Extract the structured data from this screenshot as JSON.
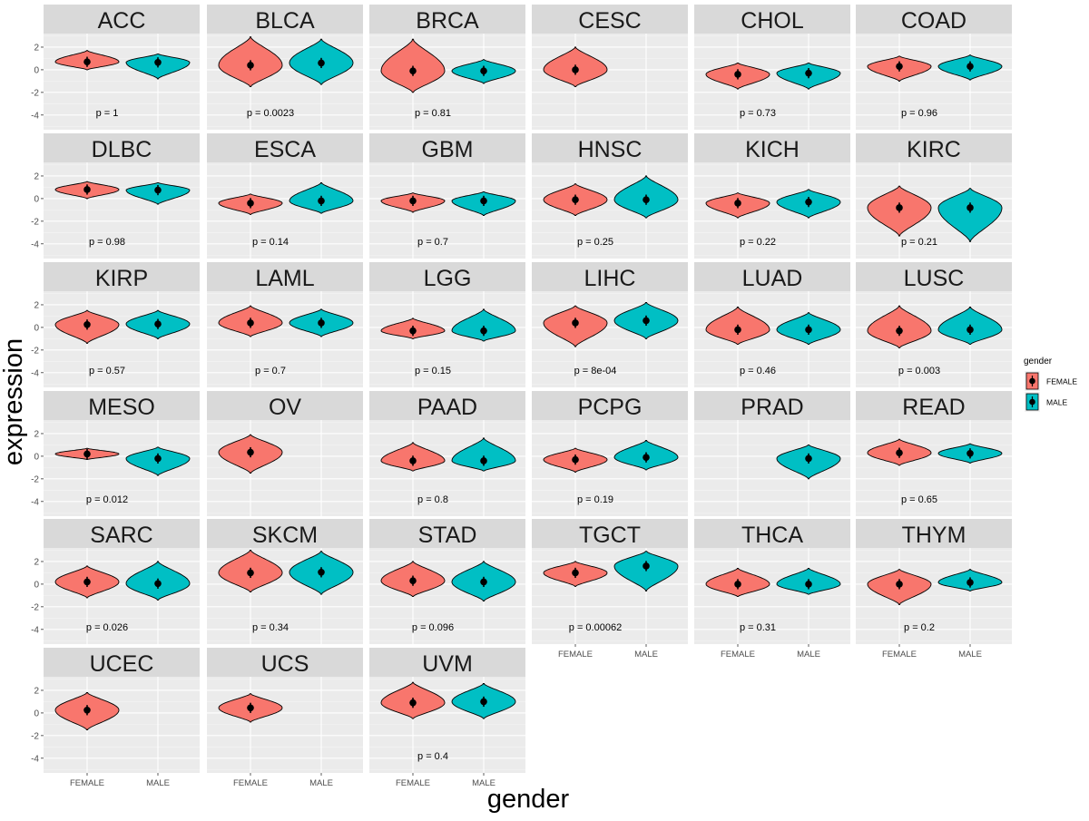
{
  "chart_data": {
    "type": "violin",
    "xlabel": "gender",
    "ylabel": "expression",
    "y_ticks": [
      -4,
      -2,
      0,
      2
    ],
    "ylim": [
      -5.3,
      3.2
    ],
    "x_categories": [
      "FEMALE",
      "MALE"
    ],
    "legend": {
      "title": "gender",
      "placement": "right",
      "items": [
        {
          "label": "FEMALE",
          "color": "#F8766D"
        },
        {
          "label": "MALE",
          "color": "#00BFC4"
        }
      ]
    },
    "panels": [
      {
        "name": "ACC",
        "p": "p = 1",
        "female": {
          "center": 0.7,
          "min": 0.0,
          "max": 1.7
        },
        "male": {
          "center": 0.65,
          "min": -0.8,
          "max": 1.4
        }
      },
      {
        "name": "BLCA",
        "p": "p = 0.0023",
        "female": {
          "center": 0.4,
          "min": -1.5,
          "max": 2.9
        },
        "male": {
          "center": 0.6,
          "min": -1.3,
          "max": 2.7
        }
      },
      {
        "name": "BRCA",
        "p": "p = 0.81",
        "female": {
          "center": -0.1,
          "min": -2.0,
          "max": 2.7
        },
        "male": {
          "center": -0.1,
          "min": -1.2,
          "max": 0.9
        }
      },
      {
        "name": "CESC",
        "p": "",
        "female": {
          "center": 0.0,
          "min": -1.5,
          "max": 2.0
        },
        "male": null
      },
      {
        "name": "CHOL",
        "p": "p = 0.73",
        "female": {
          "center": -0.4,
          "min": -1.7,
          "max": 0.6
        },
        "male": {
          "center": -0.3,
          "min": -1.7,
          "max": 0.6
        }
      },
      {
        "name": "COAD",
        "p": "p = 0.96",
        "female": {
          "center": 0.3,
          "min": -1.0,
          "max": 1.2
        },
        "male": {
          "center": 0.3,
          "min": -0.9,
          "max": 1.3
        }
      },
      {
        "name": "DLBC",
        "p": "p = 0.98",
        "female": {
          "center": 0.8,
          "min": 0.0,
          "max": 1.5
        },
        "male": {
          "center": 0.75,
          "min": -0.5,
          "max": 1.4
        }
      },
      {
        "name": "ESCA",
        "p": "p = 0.14",
        "female": {
          "center": -0.4,
          "min": -1.4,
          "max": 0.4
        },
        "male": {
          "center": -0.2,
          "min": -1.3,
          "max": 1.4
        }
      },
      {
        "name": "GBM",
        "p": "p = 0.7",
        "female": {
          "center": -0.2,
          "min": -1.2,
          "max": 0.5
        },
        "male": {
          "center": -0.2,
          "min": -1.5,
          "max": 0.6
        }
      },
      {
        "name": "HNSC",
        "p": "p = 0.25",
        "female": {
          "center": -0.1,
          "min": -1.5,
          "max": 1.3
        },
        "male": {
          "center": -0.1,
          "min": -1.7,
          "max": 2.0
        }
      },
      {
        "name": "KICH",
        "p": "p = 0.22",
        "female": {
          "center": -0.4,
          "min": -1.7,
          "max": 0.5
        },
        "male": {
          "center": -0.3,
          "min": -1.7,
          "max": 0.8
        }
      },
      {
        "name": "KIRC",
        "p": "p = 0.21",
        "female": {
          "center": -0.8,
          "min": -3.3,
          "max": 1.1
        },
        "male": {
          "center": -0.8,
          "min": -3.8,
          "max": 0.9
        }
      },
      {
        "name": "KIRP",
        "p": "p = 0.57",
        "female": {
          "center": 0.25,
          "min": -1.4,
          "max": 1.5
        },
        "male": {
          "center": 0.3,
          "min": -1.0,
          "max": 1.5
        }
      },
      {
        "name": "LAML",
        "p": "p = 0.7",
        "female": {
          "center": 0.4,
          "min": -0.8,
          "max": 1.9
        },
        "male": {
          "center": 0.4,
          "min": -0.8,
          "max": 1.6
        }
      },
      {
        "name": "LGG",
        "p": "p = 0.15",
        "female": {
          "center": -0.3,
          "min": -1.0,
          "max": 0.8
        },
        "male": {
          "center": -0.3,
          "min": -1.2,
          "max": 1.6
        }
      },
      {
        "name": "LIHC",
        "p": "p = 8e-04",
        "female": {
          "center": 0.4,
          "min": -1.7,
          "max": 1.9
        },
        "male": {
          "center": 0.6,
          "min": -1.0,
          "max": 2.2
        }
      },
      {
        "name": "LUAD",
        "p": "p = 0.46",
        "female": {
          "center": -0.2,
          "min": -1.5,
          "max": 1.8
        },
        "male": {
          "center": -0.2,
          "min": -1.5,
          "max": 1.3
        }
      },
      {
        "name": "LUSC",
        "p": "p = 0.003",
        "female": {
          "center": -0.3,
          "min": -1.8,
          "max": 1.9
        },
        "male": {
          "center": -0.2,
          "min": -1.5,
          "max": 1.8
        }
      },
      {
        "name": "MESO",
        "p": "p = 0.012",
        "female": {
          "center": 0.2,
          "min": -0.3,
          "max": 0.7
        },
        "male": {
          "center": -0.2,
          "min": -1.7,
          "max": 0.8
        }
      },
      {
        "name": "OV",
        "p": "",
        "female": {
          "center": 0.35,
          "min": -1.5,
          "max": 1.9
        },
        "male": null
      },
      {
        "name": "PAAD",
        "p": "p = 0.8",
        "female": {
          "center": -0.4,
          "min": -1.3,
          "max": 1.2
        },
        "male": {
          "center": -0.4,
          "min": -1.3,
          "max": 1.6
        }
      },
      {
        "name": "PCPG",
        "p": "p = 0.19",
        "female": {
          "center": -0.3,
          "min": -1.4,
          "max": 0.7
        },
        "male": {
          "center": -0.1,
          "min": -1.2,
          "max": 1.4
        }
      },
      {
        "name": "PRAD",
        "p": "",
        "female": null,
        "male": {
          "center": -0.2,
          "min": -2.0,
          "max": 1.0
        }
      },
      {
        "name": "READ",
        "p": "p = 0.65",
        "female": {
          "center": 0.3,
          "min": -0.8,
          "max": 1.5
        },
        "male": {
          "center": 0.25,
          "min": -0.6,
          "max": 1.1
        }
      },
      {
        "name": "SARC",
        "p": "p = 0.026",
        "female": {
          "center": 0.2,
          "min": -1.2,
          "max": 1.6
        },
        "male": {
          "center": 0.05,
          "min": -1.4,
          "max": 2.0
        }
      },
      {
        "name": "SKCM",
        "p": "p = 0.34",
        "female": {
          "center": 1.0,
          "min": -0.7,
          "max": 3.0
        },
        "male": {
          "center": 1.05,
          "min": -0.9,
          "max": 2.9
        }
      },
      {
        "name": "STAD",
        "p": "p = 0.096",
        "female": {
          "center": 0.3,
          "min": -1.1,
          "max": 2.0
        },
        "male": {
          "center": 0.2,
          "min": -1.5,
          "max": 2.0
        }
      },
      {
        "name": "TGCT",
        "p": "p = 0.00062",
        "female": {
          "center": 1.0,
          "min": -0.2,
          "max": 2.0
        },
        "male": {
          "center": 1.6,
          "min": -0.6,
          "max": 2.9
        }
      },
      {
        "name": "THCA",
        "p": "p = 0.31",
        "female": {
          "center": 0.0,
          "min": -1.1,
          "max": 1.4
        },
        "male": {
          "center": 0.0,
          "min": -0.9,
          "max": 1.4
        }
      },
      {
        "name": "THYM",
        "p": "p = 0.2",
        "female": {
          "center": 0.0,
          "min": -1.8,
          "max": 1.3
        },
        "male": {
          "center": 0.15,
          "min": -0.6,
          "max": 1.3
        }
      },
      {
        "name": "UCEC",
        "p": "",
        "female": {
          "center": 0.25,
          "min": -1.5,
          "max": 1.8
        },
        "male": null
      },
      {
        "name": "UCS",
        "p": "",
        "female": {
          "center": 0.45,
          "min": -0.8,
          "max": 1.7
        },
        "male": null
      },
      {
        "name": "UVM",
        "p": "p = 0.4",
        "female": {
          "center": 0.9,
          "min": -0.5,
          "max": 2.7
        },
        "male": {
          "center": 1.0,
          "min": -0.5,
          "max": 2.6
        }
      }
    ]
  }
}
